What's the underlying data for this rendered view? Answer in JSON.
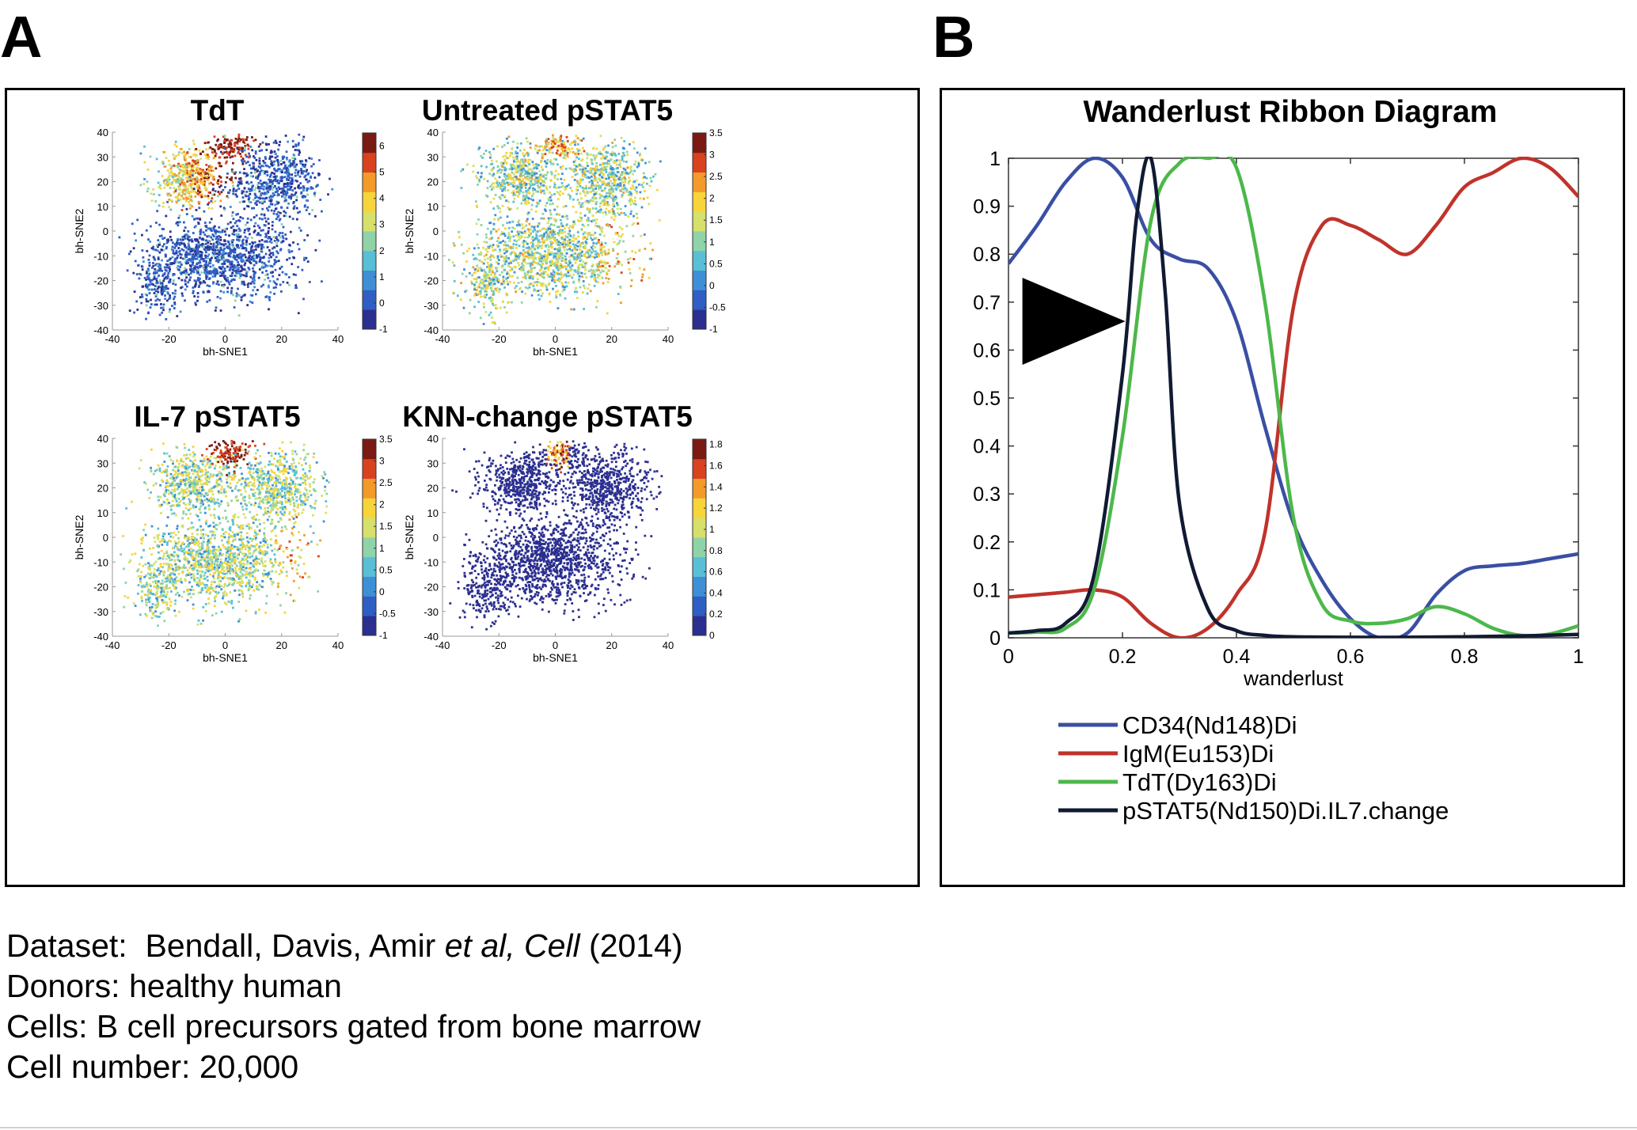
{
  "panels": {
    "a": {
      "letter": "A"
    },
    "b": {
      "letter": "B"
    }
  },
  "caption": {
    "line1_label": "Dataset:  Bendall, Davis, Amir ",
    "line1_italic": "et al, Cell",
    "line1_year": " (2014)",
    "line2": "Donors: healthy human",
    "line3": "Cells: B cell precursors gated from bone marrow",
    "line4": "Cell number: 20,000"
  },
  "colors": {
    "cd34": "#3a4fa3",
    "igm": "#c0332b",
    "tdt": "#4cb84a",
    "pstat5": "#111a33",
    "colormap": [
      "#2b2f8f",
      "#2f5ec4",
      "#3f8fd6",
      "#58bfd6",
      "#8fd3a8",
      "#d6e06a",
      "#f7d43a",
      "#f39a2b",
      "#d9421f",
      "#7a1a12"
    ]
  },
  "chart_data": [
    {
      "type": "scatter",
      "title": "TdT",
      "xlabel": "bh-SNE1",
      "ylabel": "bh-SNE2",
      "xlim": [
        -40,
        40
      ],
      "ylim": [
        -40,
        40
      ],
      "xticks": [
        "-40",
        "-20",
        "0",
        "20",
        "40"
      ],
      "yticks": [
        "40",
        "30",
        "20",
        "10",
        "0",
        "-10",
        "-20",
        "-30",
        "-40"
      ],
      "colorbar_ticks": [
        "6",
        "5",
        "4",
        "3",
        "2",
        "1",
        "0",
        "-1"
      ],
      "colorbar_range": [
        -1,
        6.5
      ]
    },
    {
      "type": "scatter",
      "title": "Untreated pSTAT5",
      "xlabel": "bh-SNE1",
      "ylabel": "bh-SNE2",
      "xlim": [
        -40,
        40
      ],
      "ylim": [
        -40,
        40
      ],
      "xticks": [
        "-40",
        "-20",
        "0",
        "20",
        "40"
      ],
      "yticks": [
        "40",
        "30",
        "20",
        "10",
        "0",
        "-10",
        "-20",
        "-30",
        "-40"
      ],
      "colorbar_ticks": [
        "3.5",
        "3",
        "2.5",
        "2",
        "1.5",
        "1",
        "0.5",
        "0",
        "-0.5",
        "-1"
      ],
      "colorbar_range": [
        -1,
        3.5
      ]
    },
    {
      "type": "scatter",
      "title": "IL-7 pSTAT5",
      "xlabel": "bh-SNE1",
      "ylabel": "bh-SNE2",
      "xlim": [
        -40,
        40
      ],
      "ylim": [
        -40,
        40
      ],
      "xticks": [
        "-40",
        "-20",
        "0",
        "20",
        "40"
      ],
      "yticks": [
        "40",
        "30",
        "20",
        "10",
        "0",
        "-10",
        "-20",
        "-30",
        "-40"
      ],
      "colorbar_ticks": [
        "3.5",
        "3",
        "2.5",
        "2",
        "1.5",
        "1",
        "0.5",
        "0",
        "-0.5",
        "-1"
      ],
      "colorbar_range": [
        -1,
        3.5
      ]
    },
    {
      "type": "scatter",
      "title": "KNN-change pSTAT5",
      "xlabel": "bh-SNE1",
      "ylabel": "bh-SNE2",
      "xlim": [
        -40,
        40
      ],
      "ylim": [
        -40,
        40
      ],
      "xticks": [
        "-40",
        "-20",
        "0",
        "20",
        "40"
      ],
      "yticks": [
        "40",
        "30",
        "20",
        "10",
        "0",
        "-10",
        "-20",
        "-30",
        "-40"
      ],
      "colorbar_ticks": [
        "1.8",
        "1.6",
        "1.4",
        "1.2",
        "1",
        "0.8",
        "0.6",
        "0.4",
        "0.2",
        "0"
      ],
      "colorbar_range": [
        0,
        1.85
      ]
    },
    {
      "type": "line",
      "title": "Wanderlust Ribbon Diagram",
      "xlabel": "wanderlust",
      "ylabel": "",
      "xlim": [
        0,
        1
      ],
      "ylim": [
        0,
        1
      ],
      "xticks": [
        "0",
        "0.2",
        "0.4",
        "0.6",
        "0.8",
        "1"
      ],
      "yticks": [
        "1",
        "0.9",
        "0.8",
        "0.7",
        "0.6",
        "0.5",
        "0.4",
        "0.3",
        "0.2",
        "0.1",
        "0"
      ],
      "legend_position": "below",
      "series": [
        {
          "name": "CD34(Nd148)Di",
          "x": [
            0,
            0.05,
            0.1,
            0.15,
            0.2,
            0.25,
            0.3,
            0.35,
            0.4,
            0.45,
            0.5,
            0.55,
            0.6,
            0.65,
            0.7,
            0.75,
            0.8,
            0.85,
            0.9,
            0.95,
            1
          ],
          "y": [
            0.78,
            0.86,
            0.95,
            1.0,
            0.96,
            0.83,
            0.79,
            0.77,
            0.66,
            0.44,
            0.24,
            0.12,
            0.04,
            0.0,
            0.01,
            0.09,
            0.14,
            0.15,
            0.155,
            0.165,
            0.175
          ]
        },
        {
          "name": "IgM(Eu153)Di",
          "x": [
            0,
            0.05,
            0.1,
            0.15,
            0.2,
            0.25,
            0.3,
            0.35,
            0.4,
            0.45,
            0.5,
            0.55,
            0.6,
            0.65,
            0.7,
            0.75,
            0.8,
            0.85,
            0.9,
            0.95,
            1
          ],
          "y": [
            0.085,
            0.09,
            0.095,
            0.1,
            0.085,
            0.03,
            0.0,
            0.02,
            0.09,
            0.22,
            0.69,
            0.86,
            0.86,
            0.83,
            0.8,
            0.86,
            0.94,
            0.97,
            1.0,
            0.98,
            0.92
          ]
        },
        {
          "name": "TdT(Dy163)Di",
          "x": [
            0,
            0.05,
            0.1,
            0.15,
            0.2,
            0.25,
            0.3,
            0.35,
            0.4,
            0.45,
            0.5,
            0.55,
            0.6,
            0.65,
            0.7,
            0.75,
            0.8,
            0.85,
            0.9,
            0.95,
            1
          ],
          "y": [
            0.01,
            0.012,
            0.02,
            0.1,
            0.42,
            0.87,
            0.99,
            1.0,
            0.98,
            0.7,
            0.25,
            0.07,
            0.035,
            0.03,
            0.04,
            0.065,
            0.05,
            0.02,
            0.005,
            0.008,
            0.025
          ]
        },
        {
          "name": "pSTAT5(Nd150)Di.IL7.change",
          "x": [
            0,
            0.05,
            0.1,
            0.15,
            0.2,
            0.225,
            0.25,
            0.275,
            0.3,
            0.35,
            0.4,
            0.45,
            0.5,
            0.6,
            0.7,
            0.8,
            0.9,
            1
          ],
          "y": [
            0.01,
            0.015,
            0.03,
            0.13,
            0.55,
            0.88,
            1.0,
            0.72,
            0.28,
            0.06,
            0.015,
            0.005,
            0.002,
            0.001,
            0.001,
            0.002,
            0.004,
            0.007
          ]
        }
      ],
      "arrow_annotation": {
        "x": 0.205,
        "y": 0.66
      }
    }
  ]
}
